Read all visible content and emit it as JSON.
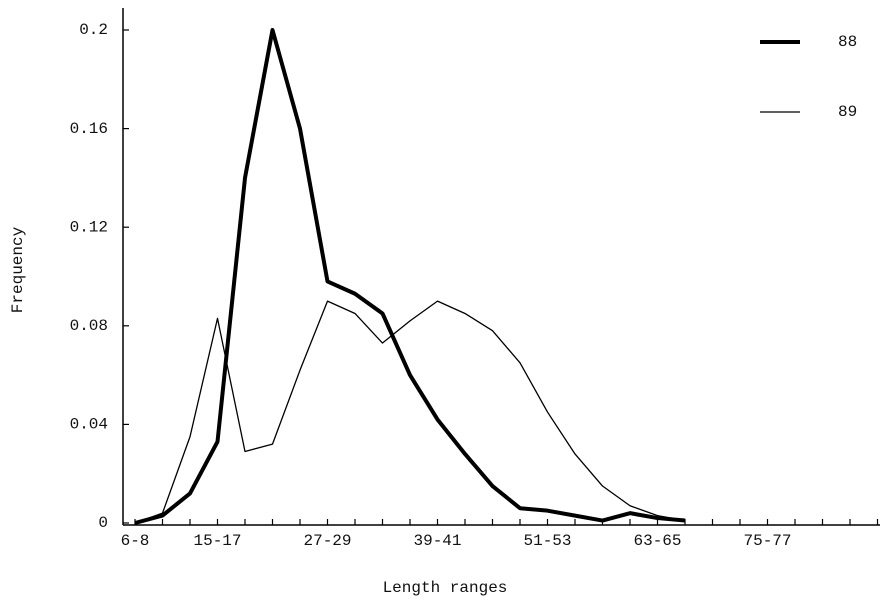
{
  "chart_data": {
    "type": "line",
    "x_label": "Length ranges",
    "y_label": "Frequency",
    "categories": [
      "6-8",
      null,
      null,
      "15-17",
      null,
      null,
      null,
      "27-29",
      null,
      null,
      null,
      "39-41",
      null,
      null,
      null,
      "51-53",
      null,
      null,
      null,
      "63-65",
      null,
      null,
      null,
      "75-77",
      null,
      null,
      null,
      null
    ],
    "series": [
      {
        "name": "88",
        "color": "#000000",
        "width": 4,
        "values": [
          0,
          0.003,
          0.012,
          0.033,
          0.14,
          0.2,
          0.16,
          0.098,
          0.093,
          0.085,
          0.06,
          0.042,
          0.028,
          0.015,
          0.006,
          0.005,
          0.003,
          0.001,
          0.004,
          0.002,
          0.001,
          null,
          null,
          null,
          null,
          null,
          null,
          null
        ]
      },
      {
        "name": "89",
        "color": "#000000",
        "width": 1.3,
        "values": [
          0,
          0.004,
          0.035,
          0.083,
          0.029,
          0.032,
          0.062,
          0.09,
          0.085,
          0.073,
          0.082,
          0.09,
          0.085,
          0.078,
          0.065,
          0.045,
          0.028,
          0.015,
          0.007,
          0.003,
          0.001,
          null,
          null,
          null,
          null,
          null,
          null,
          null
        ]
      }
    ],
    "ylim": [
      0,
      0.21
    ],
    "yticks": [
      0,
      0.04,
      0.08,
      0.12,
      0.16,
      0.2
    ],
    "legend": "upper right"
  }
}
